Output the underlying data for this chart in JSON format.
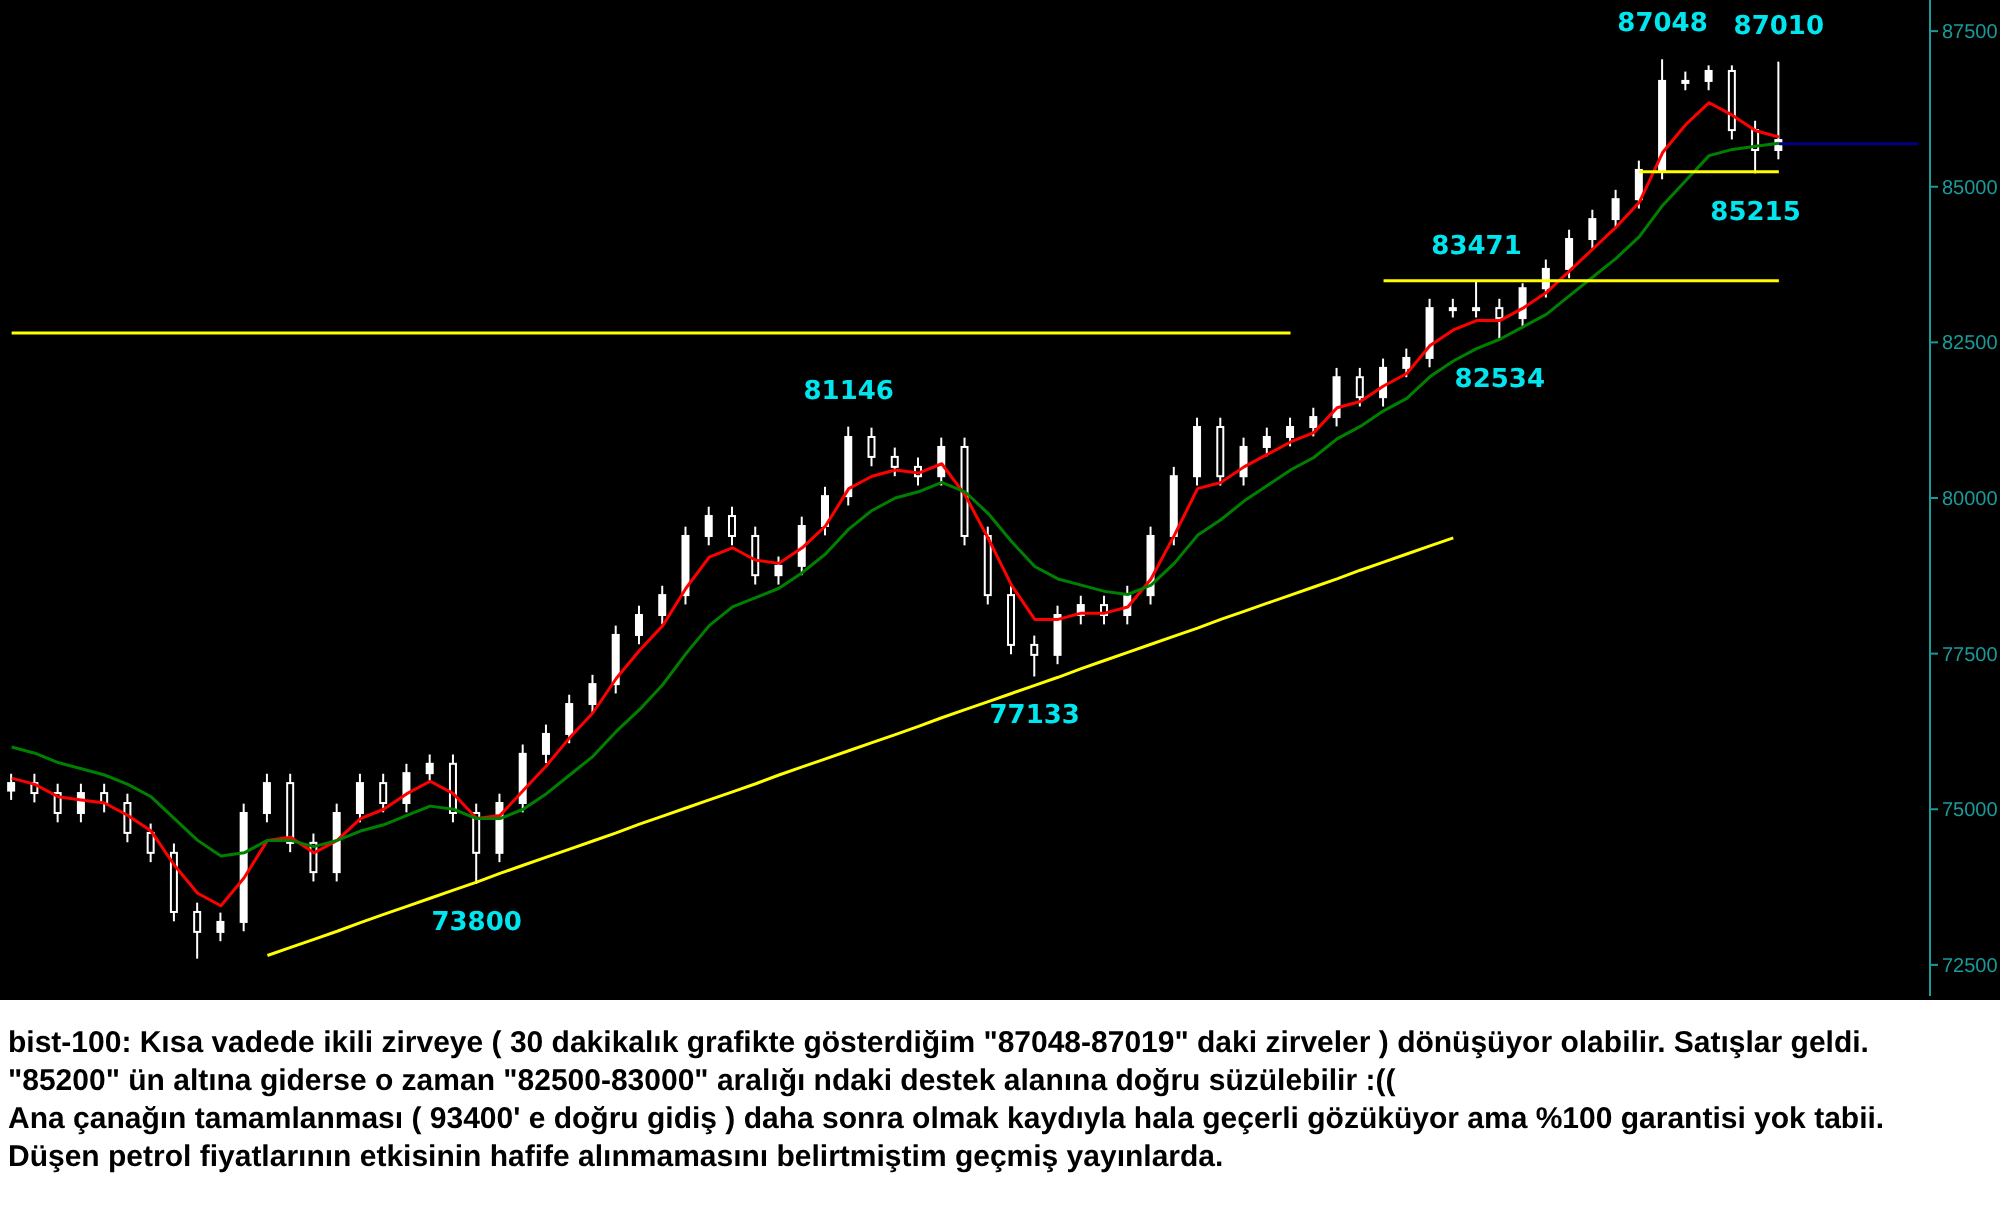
{
  "chart_data": {
    "type": "candlestick",
    "color": "#ffffff",
    "categories": [
      null,
      null,
      null,
      null,
      null,
      null,
      null,
      null,
      null,
      null,
      null,
      null,
      null,
      null,
      null,
      null,
      null,
      null,
      null,
      null,
      null,
      null,
      null,
      null,
      null,
      null,
      null,
      null,
      null,
      null,
      null,
      null,
      null,
      null,
      null,
      null,
      null,
      null,
      null,
      null,
      null,
      null,
      null,
      null,
      null,
      null,
      null,
      null,
      null,
      null,
      null,
      null,
      null,
      null,
      null,
      null,
      null,
      null,
      null,
      null,
      null,
      null,
      null,
      null,
      null,
      null,
      null,
      null,
      null,
      null,
      null,
      null,
      null,
      null,
      null,
      null,
      null,
      null,
      null,
      null,
      null,
      null,
      null
    ],
    "ohlc": [
      [
        75300,
        75570,
        75150,
        75420
      ],
      [
        75420,
        75570,
        75110,
        75260
      ],
      [
        75260,
        75410,
        74790,
        74940
      ],
      [
        74940,
        75410,
        74790,
        75260
      ],
      [
        75260,
        75410,
        74950,
        75100
      ],
      [
        75100,
        75250,
        74470,
        74620
      ],
      [
        74620,
        74770,
        74150,
        74300
      ],
      [
        74300,
        74450,
        73200,
        73350
      ],
      [
        73350,
        73500,
        72600,
        73030
      ],
      [
        73030,
        73340,
        72880,
        73190
      ],
      [
        73190,
        75090,
        73040,
        74940
      ],
      [
        74940,
        75570,
        74790,
        75420
      ],
      [
        75420,
        75570,
        74310,
        74460
      ],
      [
        74460,
        74610,
        73840,
        73990
      ],
      [
        73990,
        75090,
        73840,
        74940
      ],
      [
        74940,
        75570,
        74790,
        75420
      ],
      [
        75420,
        75570,
        74950,
        75100
      ],
      [
        75100,
        75730,
        74950,
        75580
      ],
      [
        75580,
        75880,
        75430,
        75730
      ],
      [
        75730,
        75880,
        74790,
        74940
      ],
      [
        74940,
        75090,
        73800,
        74300
      ],
      [
        74300,
        75250,
        74150,
        75100
      ],
      [
        75100,
        76040,
        74950,
        75890
      ],
      [
        75890,
        76360,
        75740,
        76210
      ],
      [
        76210,
        76840,
        76060,
        76690
      ],
      [
        76690,
        77160,
        76540,
        77010
      ],
      [
        77010,
        77950,
        76860,
        77800
      ],
      [
        77800,
        78270,
        77650,
        78120
      ],
      [
        78120,
        78590,
        77970,
        78440
      ],
      [
        78440,
        79540,
        78290,
        79390
      ],
      [
        79390,
        79860,
        79240,
        79710
      ],
      [
        79710,
        79860,
        79240,
        79390
      ],
      [
        79390,
        79540,
        78610,
        78760
      ],
      [
        78760,
        79060,
        78610,
        78910
      ],
      [
        78910,
        79700,
        78760,
        79550
      ],
      [
        79550,
        80180,
        79400,
        80030
      ],
      [
        80030,
        81146,
        79880,
        80980
      ],
      [
        80980,
        81130,
        80510,
        80660
      ],
      [
        80660,
        80810,
        80350,
        80500
      ],
      [
        80500,
        80650,
        80200,
        80350
      ],
      [
        80350,
        80970,
        80200,
        80820
      ],
      [
        80820,
        80970,
        79240,
        79390
      ],
      [
        79390,
        79540,
        78290,
        78440
      ],
      [
        78440,
        78590,
        77490,
        77640
      ],
      [
        77640,
        77790,
        77133,
        77480
      ],
      [
        77480,
        78270,
        77330,
        78120
      ],
      [
        78120,
        78430,
        77970,
        78280
      ],
      [
        78280,
        78430,
        77970,
        78120
      ],
      [
        78120,
        78590,
        77970,
        78440
      ],
      [
        78440,
        79540,
        78290,
        79390
      ],
      [
        79390,
        80500,
        79240,
        80350
      ],
      [
        80350,
        81290,
        80200,
        81140
      ],
      [
        81140,
        81290,
        80200,
        80350
      ],
      [
        80350,
        80970,
        80200,
        80820
      ],
      [
        80820,
        81130,
        80670,
        80980
      ],
      [
        80980,
        81290,
        80830,
        81140
      ],
      [
        81140,
        81450,
        80990,
        81300
      ],
      [
        81300,
        82090,
        81150,
        81940
      ],
      [
        81940,
        82090,
        81470,
        81620
      ],
      [
        81620,
        82240,
        81470,
        82090
      ],
      [
        82090,
        82400,
        81940,
        82250
      ],
      [
        82250,
        83200,
        82100,
        83050
      ],
      [
        83050,
        83200,
        82900,
        83050
      ],
      [
        83050,
        83471,
        82900,
        83050
      ],
      [
        83050,
        83200,
        82534,
        82890
      ],
      [
        82890,
        83450,
        82740,
        83370
      ],
      [
        83370,
        83830,
        83220,
        83680
      ],
      [
        83680,
        84310,
        83530,
        84160
      ],
      [
        84160,
        84630,
        84010,
        84480
      ],
      [
        84480,
        84950,
        84330,
        84800
      ],
      [
        84800,
        85420,
        84650,
        85270
      ],
      [
        85270,
        87048,
        85120,
        86700
      ],
      [
        86700,
        86850,
        86550,
        86700
      ],
      [
        86700,
        86950,
        86550,
        86860
      ],
      [
        86860,
        86950,
        85760,
        85910
      ],
      [
        85910,
        86060,
        85215,
        85590
      ],
      [
        85590,
        87010,
        85440,
        85750
      ],
      null,
      null,
      null,
      null,
      null,
      null
    ],
    "series": [
      {
        "type": "line",
        "color": "#ff0000",
        "values": [
          75500,
          75400,
          75200,
          75150,
          75100,
          74900,
          74650,
          74100,
          73650,
          73450,
          73900,
          74500,
          74550,
          74300,
          74500,
          74850,
          75000,
          75250,
          75450,
          75250,
          74850,
          74900,
          75300,
          75700,
          76150,
          76550,
          77100,
          77550,
          77950,
          78550,
          79050,
          79200,
          79000,
          78950,
          79200,
          79550,
          80150,
          80350,
          80450,
          80400,
          80550,
          80050,
          79350,
          78600,
          78050,
          78050,
          78150,
          78150,
          78250,
          78700,
          79400,
          80150,
          80250,
          80500,
          80700,
          80900,
          81050,
          81450,
          81550,
          81800,
          82000,
          82450,
          82700,
          82850,
          82850,
          83050,
          83300,
          83650,
          84000,
          84350,
          84750,
          85550,
          86000,
          86350,
          86150,
          85900,
          85800,
          null,
          null,
          null,
          null,
          null,
          null
        ]
      },
      {
        "type": "line",
        "color": "#008000",
        "values": [
          76000,
          75900,
          75750,
          75650,
          75550,
          75400,
          75200,
          74850,
          74500,
          74250,
          74300,
          74500,
          74500,
          74400,
          74500,
          74650,
          74750,
          74900,
          75050,
          75000,
          74850,
          74850,
          75000,
          75250,
          75550,
          75850,
          76250,
          76600,
          77000,
          77500,
          77950,
          78250,
          78400,
          78550,
          78800,
          79100,
          79500,
          79800,
          80000,
          80100,
          80250,
          80100,
          79750,
          79300,
          78900,
          78700,
          78600,
          78500,
          78450,
          78600,
          78950,
          79400,
          79650,
          79950,
          80200,
          80450,
          80650,
          80950,
          81150,
          81400,
          81600,
          81950,
          82200,
          82400,
          82550,
          82750,
          82950,
          83250,
          83550,
          83850,
          84200,
          84700,
          85100,
          85500,
          85600,
          85650,
          85700,
          null,
          null,
          null,
          null,
          null,
          null
        ]
      },
      {
        "type": "line",
        "color": "#ffff00",
        "values": [
          82650,
          82650,
          82650,
          82650,
          82650,
          82650,
          82650,
          82650,
          82650,
          82650,
          82650,
          82650,
          82650,
          82650,
          82650,
          82650,
          82650,
          82650,
          82650,
          82650,
          82650,
          82650,
          82650,
          82650,
          82650,
          82650,
          82650,
          82650,
          82650,
          82650,
          82650,
          82650,
          82650,
          82650,
          82650,
          82650,
          82650,
          82650,
          82650,
          82650,
          82650,
          82650,
          82650,
          82650,
          82650,
          82650,
          82650,
          82650,
          82650,
          82650,
          82650,
          82650,
          82650,
          82650,
          82650,
          82650,
          null,
          null,
          null,
          null,
          null,
          null,
          null,
          null,
          null,
          null,
          null,
          null,
          null,
          null,
          null,
          null,
          null,
          null,
          null,
          null,
          null,
          null,
          null,
          null,
          null,
          null,
          null
        ]
      },
      {
        "type": "line",
        "color": "#ffff00",
        "values": [
          null,
          null,
          null,
          null,
          null,
          null,
          null,
          null,
          null,
          null,
          null,
          null,
          null,
          null,
          null,
          null,
          null,
          null,
          null,
          null,
          null,
          null,
          null,
          null,
          null,
          null,
          null,
          null,
          null,
          null,
          null,
          null,
          null,
          null,
          null,
          null,
          null,
          null,
          null,
          null,
          null,
          null,
          null,
          null,
          null,
          null,
          null,
          null,
          null,
          null,
          null,
          null,
          null,
          null,
          null,
          null,
          null,
          null,
          null,
          83490,
          83490,
          83490,
          83490,
          83490,
          83490,
          83490,
          83490,
          83490,
          83490,
          83490,
          83490,
          83490,
          83490,
          83490,
          83490,
          83490,
          83490,
          null,
          null,
          null,
          null,
          null,
          null
        ]
      },
      {
        "type": "line",
        "color": "#ffff00",
        "values": [
          null,
          null,
          null,
          null,
          null,
          null,
          null,
          null,
          null,
          null,
          null,
          null,
          null,
          null,
          null,
          null,
          null,
          null,
          null,
          null,
          null,
          null,
          null,
          null,
          null,
          null,
          null,
          null,
          null,
          null,
          null,
          null,
          null,
          null,
          null,
          null,
          null,
          null,
          null,
          null,
          null,
          null,
          null,
          null,
          null,
          null,
          null,
          null,
          null,
          null,
          null,
          null,
          null,
          null,
          null,
          null,
          null,
          null,
          null,
          null,
          null,
          null,
          null,
          null,
          null,
          null,
          null,
          null,
          null,
          null,
          85240,
          85240,
          85240,
          85240,
          85240,
          85240,
          85240,
          null,
          null,
          null,
          null,
          null,
          null
        ]
      },
      {
        "type": "line",
        "color": "#ffff00",
        "values": [
          null,
          null,
          null,
          null,
          null,
          null,
          null,
          null,
          null,
          null,
          null,
          72650,
          72780,
          72910,
          73040,
          73180,
          73310,
          73440,
          73570,
          73700,
          73830,
          73970,
          74100,
          74230,
          74360,
          74490,
          74620,
          74760,
          74890,
          75020,
          75150,
          75280,
          75410,
          75550,
          75680,
          75810,
          75940,
          76070,
          76200,
          76330,
          76470,
          76600,
          76730,
          76860,
          76990,
          77120,
          77260,
          77390,
          77520,
          77650,
          77780,
          77910,
          78050,
          78180,
          78310,
          78440,
          78570,
          78700,
          78840,
          78970,
          79100,
          79230,
          79360,
          null,
          null,
          null,
          null,
          null,
          null,
          null,
          null,
          null,
          null,
          null,
          null,
          null,
          null,
          null,
          null,
          null,
          null,
          null,
          null
        ]
      },
      {
        "type": "line",
        "color": "#000080",
        "values": [
          null,
          null,
          null,
          null,
          null,
          null,
          null,
          null,
          null,
          null,
          null,
          null,
          null,
          null,
          null,
          null,
          null,
          null,
          null,
          null,
          null,
          null,
          null,
          null,
          null,
          null,
          null,
          null,
          null,
          null,
          null,
          null,
          null,
          null,
          null,
          null,
          null,
          null,
          null,
          null,
          null,
          null,
          null,
          null,
          null,
          null,
          null,
          null,
          null,
          null,
          null,
          null,
          null,
          null,
          null,
          null,
          null,
          null,
          null,
          null,
          null,
          null,
          null,
          null,
          null,
          null,
          null,
          null,
          null,
          null,
          null,
          null,
          null,
          null,
          null,
          null,
          85690,
          85690,
          85690,
          85690,
          85690,
          85690,
          85690
        ]
      }
    ],
    "ylim": [
      72000,
      88000
    ],
    "yticks": [
      72500,
      75000,
      77500,
      80000,
      82500,
      85000,
      87500
    ],
    "tick_labels": "y",
    "annotations": [
      {
        "text": "87048",
        "y": 87048
      },
      {
        "text": "87010",
        "y": 87010
      },
      {
        "text": "85215",
        "y": 85215
      },
      {
        "text": "83471",
        "y": 83471
      },
      {
        "text": "82534",
        "y": 82534
      },
      {
        "text": "81146",
        "y": 81146
      },
      {
        "text": "77133",
        "y": 77133
      },
      {
        "text": "73800",
        "y": 73800
      },
      "bist-100: Kısa vadede ikili zirveye ( 30 dakikalık grafikte gösterdiğim \"87048-87019\" daki zirveler ) dönüşüyor olabilir. Satışlar geldi. \"85200\" ün altına giderse o zaman \"82500-83000\" aralığı ndaki destek alanına doğru süzülebilir :((",
      "Ana çanağın tamamlanması ( 93400' e doğru gidiş ) daha sonra olmak kaydıyla hala geçerli gözüküyor ama %100 garantisi yok tabii. Düşen petrol fiyatlarının etkisinin hafife alınmamasını belirtmiştim geçmiş yayınlarda."
    ]
  }
}
